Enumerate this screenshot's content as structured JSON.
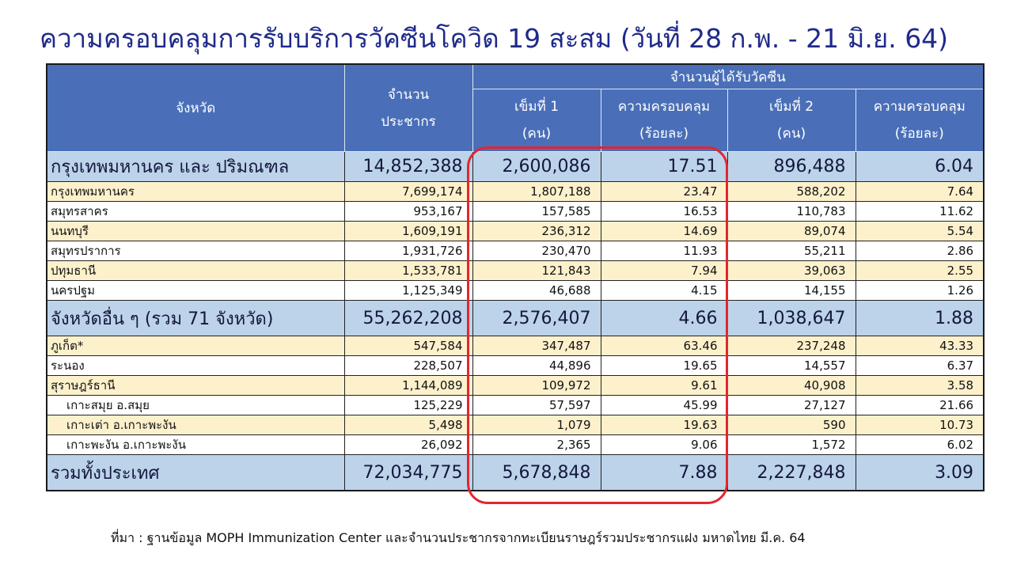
{
  "title": "ความครอบคลุมการรับบริการวัคซีนโควิด 19 สะสม (วันที่ 28 ก.พ. - 21 มิ.ย. 64)",
  "headers": {
    "province": "จังหวัด",
    "population_line1": "จำนวน",
    "population_line2": "ประชากร",
    "vaccinated": "จำนวนผู้ได้รับวัคซีน",
    "dose1_line1": "เข็มที่ 1",
    "dose1_line2": "(คน)",
    "coverage1_line1": "ความครอบคลุม",
    "coverage1_line2": "(ร้อยละ)",
    "dose2_line1": "เข็มที่ 2",
    "dose2_line2": "(คน)",
    "coverage2_line1": "ความครอบคลุม",
    "coverage2_line2": "(ร้อยละ)"
  },
  "rows": [
    {
      "name": "กรุงเทพมหานคร และ ปริมณฑล",
      "population": "14,852,388",
      "dose1": "2,600,086",
      "cov1": "17.51",
      "dose2": "896,488",
      "cov2": "6.04"
    },
    {
      "name": "กรุงเทพมหานคร",
      "population": "7,699,174",
      "dose1": "1,807,188",
      "cov1": "23.47",
      "dose2": "588,202",
      "cov2": "7.64"
    },
    {
      "name": "สมุทรสาคร",
      "population": "953,167",
      "dose1": "157,585",
      "cov1": "16.53",
      "dose2": "110,783",
      "cov2": "11.62"
    },
    {
      "name": "นนทบุรี",
      "population": "1,609,191",
      "dose1": "236,312",
      "cov1": "14.69",
      "dose2": "89,074",
      "cov2": "5.54"
    },
    {
      "name": "สมุทรปราการ",
      "population": "1,931,726",
      "dose1": "230,470",
      "cov1": "11.93",
      "dose2": "55,211",
      "cov2": "2.86"
    },
    {
      "name": "ปทุมธานี",
      "population": "1,533,781",
      "dose1": "121,843",
      "cov1": "7.94",
      "dose2": "39,063",
      "cov2": "2.55"
    },
    {
      "name": "นครปฐม",
      "population": "1,125,349",
      "dose1": "46,688",
      "cov1": "4.15",
      "dose2": "14,155",
      "cov2": "1.26"
    },
    {
      "name": "จังหวัดอื่น ๆ (รวม 71 จังหวัด)",
      "population": "55,262,208",
      "dose1": "2,576,407",
      "cov1": "4.66",
      "dose2": "1,038,647",
      "cov2": "1.88"
    },
    {
      "name": "ภูเก็ต*",
      "population": "547,584",
      "dose1": "347,487",
      "cov1": "63.46",
      "dose2": "237,248",
      "cov2": "43.33"
    },
    {
      "name": "ระนอง",
      "population": "228,507",
      "dose1": "44,896",
      "cov1": "19.65",
      "dose2": "14,557",
      "cov2": "6.37"
    },
    {
      "name": "สุราษฎร์ธานี",
      "population": "1,144,089",
      "dose1": "109,972",
      "cov1": "9.61",
      "dose2": "40,908",
      "cov2": "3.58"
    },
    {
      "name": "เกาะสมุย อ.สมุย",
      "population": "125,229",
      "dose1": "57,597",
      "cov1": "45.99",
      "dose2": "27,127",
      "cov2": "21.66"
    },
    {
      "name": "เกาะเต่า อ.เกาะพะงัน",
      "population": "5,498",
      "dose1": "1,079",
      "cov1": "19.63",
      "dose2": "590",
      "cov2": "10.73"
    },
    {
      "name": "เกาะพะงัน อ.เกาะพะงัน",
      "population": "26,092",
      "dose1": "2,365",
      "cov1": "9.06",
      "dose2": "1,572",
      "cov2": "6.02"
    },
    {
      "name": "รวมทั้งประเทศ",
      "population": "72,034,775",
      "dose1": "5,678,848",
      "cov1": "7.88",
      "dose2": "2,227,848",
      "cov2": "3.09"
    }
  ],
  "footer": "ที่มา : ฐานข้อมูล MOPH  Immunization Center  และจำนวนประชากรจากทะเบียนราษฎร์รวมประชากรแฝง มหาดไทย มี.ค. 64",
  "colors": {
    "title": "#1f2a8a",
    "header_bg": "#4a6fb8",
    "section_bg": "#bcd3ea",
    "stripe_bg": "#fdf1cc",
    "highlight": "#e3262e"
  }
}
